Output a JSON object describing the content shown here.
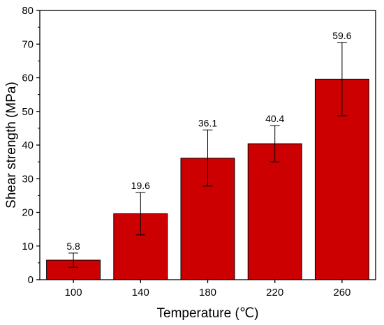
{
  "chart_data": {
    "type": "bar",
    "title": "",
    "xlabel": "Temperature (℃)",
    "ylabel": "Shear strength (MPa)",
    "categories": [
      "100",
      "140",
      "180",
      "220",
      "260"
    ],
    "values": [
      5.8,
      19.6,
      36.1,
      40.4,
      59.6
    ],
    "data_labels": [
      "5.8",
      "19.6",
      "36.1",
      "40.4",
      "59.6"
    ],
    "error_bars": [
      {
        "low": 3.7,
        "high": 7.9
      },
      {
        "low": 13.3,
        "high": 25.9
      },
      {
        "low": 27.8,
        "high": 44.5
      },
      {
        "low": 35.0,
        "high": 45.8
      },
      {
        "low": 48.7,
        "high": 70.5
      }
    ],
    "ylim": [
      0,
      80
    ],
    "yticks": [
      0,
      10,
      20,
      30,
      40,
      50,
      60,
      70,
      80
    ],
    "ytick_labels": [
      "0",
      "10",
      "20",
      "30",
      "40",
      "50",
      "60",
      "70",
      "80"
    ],
    "grid": false,
    "bar_color": "#cc0000",
    "edge_color": "#000000"
  }
}
